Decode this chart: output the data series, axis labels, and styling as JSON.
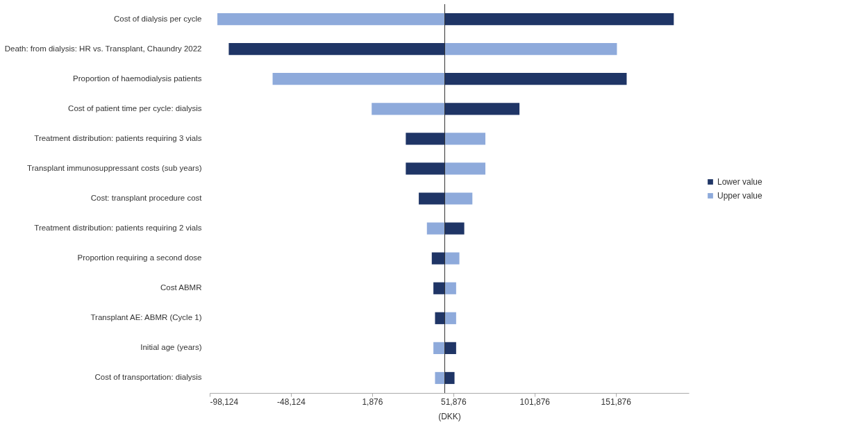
{
  "chart_data": {
    "type": "bar",
    "orientation": "horizontal",
    "xlabel": "(DKK)",
    "legend": "right",
    "categories": [
      "Cost of dialysis per cycle",
      "Death: from dialysis: HR vs. Transplant, Chaundry 2022",
      "Proportion of haemodialysis patients",
      "Cost of patient time per cycle: dialysis",
      "Treatment distribution: patients requiring 3 vials",
      "Transplant immunosuppressant costs (sub years)",
      "Cost: transplant procedure cost",
      "Treatment distribution: patients requiring 2 vials",
      "Proportion requiring a second dose",
      "Cost ABMR",
      "Transplant AE: ABMR (Cycle 1)",
      "Initial age (years)",
      "Cost of transportation: dialysis"
    ],
    "series": [
      {
        "name": "Lower value",
        "color": "#1f3566",
        "base": [
          46600,
          46600,
          46600,
          46600,
          46600,
          46600,
          46600,
          46600,
          46600,
          46600,
          46600,
          46600,
          46600
        ],
        "values": [
          141000,
          -133000,
          112000,
          46000,
          -24000,
          -24000,
          -16000,
          12000,
          -8000,
          -7000,
          -6000,
          7000,
          6000
        ]
      },
      {
        "name": "Upper  value",
        "color": "#8eaadb",
        "base": [
          46600,
          46600,
          46600,
          46600,
          46600,
          46600,
          46600,
          46600,
          46600,
          46600,
          46600,
          46600,
          46600
        ],
        "values": [
          -140000,
          106000,
          -106000,
          -45000,
          25000,
          25000,
          17000,
          -11000,
          9000,
          7000,
          7000,
          -7000,
          -6000
        ]
      }
    ],
    "xlim": [
      -98124,
      196876
    ],
    "xticks": [
      {
        "value": -98124,
        "label": "-98,124"
      },
      {
        "value": -48124,
        "label": "-48,124"
      },
      {
        "value": 1876,
        "label": "1,876"
      },
      {
        "value": 51876,
        "label": "51,876"
      },
      {
        "value": 101876,
        "label": "101,876"
      },
      {
        "value": 151876,
        "label": "151,876"
      }
    ],
    "ref_lines": [
      {
        "axis": "x",
        "value": 46600
      }
    ]
  }
}
